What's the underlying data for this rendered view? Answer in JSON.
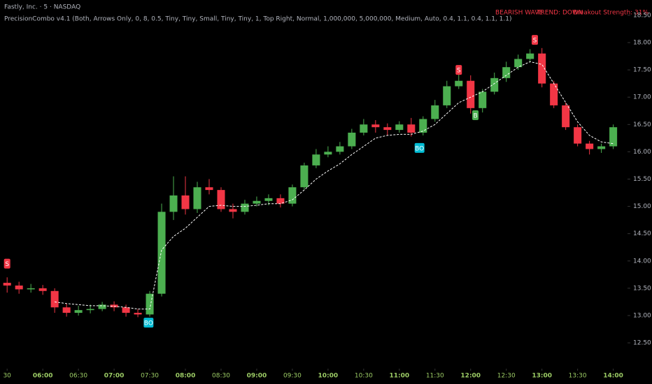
{
  "chart_data": {
    "type": "candlestick",
    "title": "Fastly, Inc. · 5 · NASDAQ",
    "subtitle": "PrecisionCombo v4.1 (Both, Arrows Only, 0, 8, 0.5, Tiny, Tiny, Small, Tiny, Tiny, 1, Top Right, Normal, 1,000,000, 5,000,000, Medium, Auto, 0.4, 1.1, 0.4, 1.1, 1.1)",
    "status": [
      "BEARISH WAVE",
      "TREND: DOWN",
      "Breakout Strength: 31%"
    ],
    "x": [
      330,
      340,
      350,
      360,
      370,
      380,
      390,
      400,
      410,
      420,
      430,
      440,
      450,
      460,
      470,
      480,
      490,
      500,
      510,
      520,
      530,
      540,
      550,
      560,
      570,
      580,
      590,
      600,
      610,
      620,
      630,
      640,
      650,
      660,
      670,
      680,
      690,
      700,
      710,
      720,
      730,
      740,
      750,
      760,
      770,
      780,
      790,
      800,
      810,
      820,
      830,
      840
    ],
    "open": [
      13.6,
      13.55,
      13.48,
      13.5,
      13.45,
      13.15,
      13.05,
      13.1,
      13.12,
      13.2,
      13.15,
      13.05,
      13.02,
      13.4,
      14.9,
      15.2,
      14.95,
      15.35,
      15.3,
      14.95,
      14.9,
      15.05,
      15.1,
      15.15,
      15.05,
      15.35,
      15.75,
      15.95,
      16.0,
      16.1,
      16.35,
      16.5,
      16.45,
      16.4,
      16.5,
      16.35,
      16.6,
      16.85,
      17.2,
      17.3,
      16.8,
      17.1,
      17.35,
      17.55,
      17.7,
      17.8,
      17.25,
      16.85,
      16.45,
      16.15,
      16.05,
      16.1
    ],
    "high": [
      13.7,
      13.62,
      13.58,
      13.56,
      13.5,
      13.22,
      13.18,
      13.2,
      13.25,
      13.26,
      13.2,
      13.12,
      13.45,
      15.05,
      15.55,
      15.55,
      15.45,
      15.5,
      15.35,
      15.05,
      15.12,
      15.18,
      15.22,
      15.22,
      15.4,
      15.8,
      16.05,
      16.1,
      16.18,
      16.42,
      16.6,
      16.58,
      16.52,
      16.56,
      16.62,
      16.65,
      16.95,
      17.3,
      17.45,
      17.4,
      17.15,
      17.45,
      17.65,
      17.78,
      17.88,
      17.9,
      17.3,
      16.9,
      16.5,
      16.2,
      16.15,
      16.5
    ],
    "low": [
      13.42,
      13.4,
      13.42,
      13.38,
      13.05,
      12.98,
      13.0,
      13.04,
      13.08,
      13.08,
      12.98,
      12.97,
      12.98,
      13.35,
      14.75,
      14.85,
      14.88,
      15.22,
      14.9,
      14.78,
      14.85,
      15.0,
      15.02,
      14.98,
      15.0,
      15.3,
      15.7,
      15.9,
      15.95,
      16.05,
      16.3,
      16.35,
      16.3,
      16.35,
      16.28,
      16.3,
      16.55,
      16.8,
      17.15,
      16.7,
      16.72,
      17.05,
      17.28,
      17.5,
      17.65,
      17.18,
      16.8,
      16.4,
      16.1,
      15.95,
      15.98,
      16.05
    ],
    "close": [
      13.55,
      13.48,
      13.5,
      13.45,
      13.15,
      13.05,
      13.1,
      13.12,
      13.2,
      13.15,
      13.05,
      13.02,
      13.4,
      14.9,
      15.2,
      14.95,
      15.35,
      15.3,
      14.95,
      14.9,
      15.05,
      15.1,
      15.15,
      15.05,
      15.35,
      15.75,
      15.95,
      16.0,
      16.1,
      16.35,
      16.5,
      16.45,
      16.4,
      16.5,
      16.35,
      16.6,
      16.85,
      17.2,
      17.3,
      16.8,
      17.1,
      17.35,
      17.55,
      17.7,
      17.8,
      17.25,
      16.85,
      16.45,
      16.15,
      16.05,
      16.1,
      16.45
    ],
    "ma": [
      null,
      null,
      null,
      null,
      13.25,
      13.22,
      13.2,
      13.18,
      13.18,
      13.17,
      13.15,
      13.12,
      13.12,
      14.2,
      14.45,
      14.6,
      14.8,
      15.0,
      15.02,
      15.0,
      15.0,
      15.02,
      15.05,
      15.05,
      15.12,
      15.3,
      15.5,
      15.65,
      15.78,
      15.95,
      16.1,
      16.25,
      16.3,
      16.32,
      16.32,
      16.38,
      16.5,
      16.7,
      16.9,
      17.0,
      17.1,
      17.25,
      17.4,
      17.55,
      17.65,
      17.6,
      17.25,
      16.9,
      16.55,
      16.3,
      16.18,
      16.15
    ],
    "up_color": "#4caf50",
    "down_color": "#f23645",
    "ma_color": "#ffffff",
    "signals": [
      {
        "x": 330,
        "y": 13.95,
        "label": "S",
        "color": "#f23645"
      },
      {
        "x": 449,
        "y": 12.87,
        "label": "BO",
        "color": "#00bcd4"
      },
      {
        "x": 677,
        "y": 16.07,
        "label": "BO",
        "color": "#00bcd4"
      },
      {
        "x": 710,
        "y": 17.5,
        "label": "S",
        "color": "#f23645"
      },
      {
        "x": 724,
        "y": 16.67,
        "label": "B",
        "color": "#4caf50"
      },
      {
        "x": 774,
        "y": 18.05,
        "label": "S",
        "color": "#f23645"
      }
    ],
    "xlim": [
      324,
      852
    ],
    "ylim": [
      12.13,
      18.78
    ],
    "xticks": [
      {
        "value": 330,
        "label": "30"
      },
      {
        "value": 360,
        "label": "06:00"
      },
      {
        "value": 390,
        "label": "06:30"
      },
      {
        "value": 420,
        "label": "07:00"
      },
      {
        "value": 450,
        "label": "07:30"
      },
      {
        "value": 480,
        "label": "08:00"
      },
      {
        "value": 510,
        "label": "08:30"
      },
      {
        "value": 540,
        "label": "09:00"
      },
      {
        "value": 570,
        "label": "09:30"
      },
      {
        "value": 600,
        "label": "10:00"
      },
      {
        "value": 630,
        "label": "10:30"
      },
      {
        "value": 660,
        "label": "11:00"
      },
      {
        "value": 690,
        "label": "11:30"
      },
      {
        "value": 720,
        "label": "12:00"
      },
      {
        "value": 750,
        "label": "12:30"
      },
      {
        "value": 780,
        "label": "13:00"
      },
      {
        "value": 810,
        "label": "13:30"
      },
      {
        "value": 840,
        "label": "14:00"
      }
    ],
    "yticks": [
      {
        "value": 12.5,
        "label": "12.50"
      },
      {
        "value": 13,
        "label": "13.00"
      },
      {
        "value": 13.5,
        "label": "13.50"
      },
      {
        "value": 14,
        "label": "14.00"
      },
      {
        "value": 14.5,
        "label": "14.50"
      },
      {
        "value": 15,
        "label": "15.00"
      },
      {
        "value": 15.5,
        "label": "15.50"
      },
      {
        "value": 16,
        "label": "16.00"
      },
      {
        "value": 16.5,
        "label": "16.50"
      },
      {
        "value": 17,
        "label": "17.00"
      },
      {
        "value": 17.5,
        "label": "17.50"
      },
      {
        "value": 18,
        "label": "18.00"
      },
      {
        "value": 18.5,
        "label": "18.50"
      }
    ]
  }
}
